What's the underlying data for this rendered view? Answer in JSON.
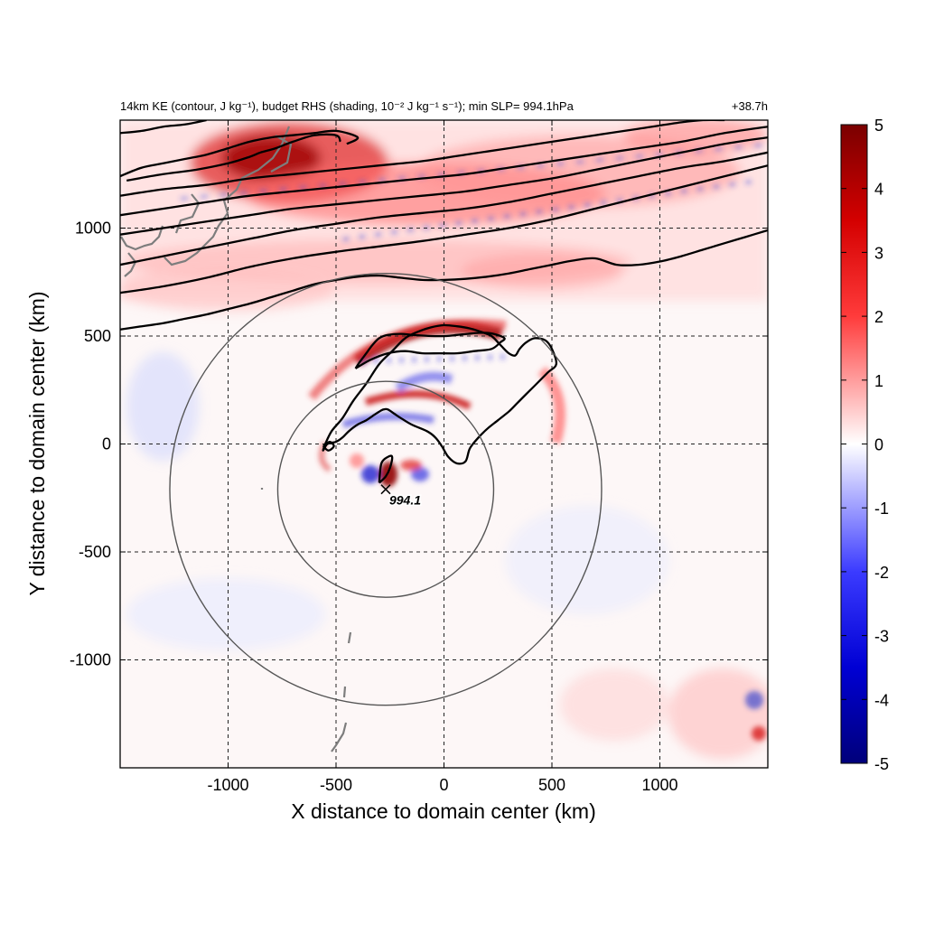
{
  "chart_data": {
    "type": "heatmap",
    "title": "14km KE (contour, J kg⁻¹), budget RHS (shading, 10⁻² J kg⁻¹ s⁻¹); min SLP= 994.1hPa",
    "time_label": "+38.7h",
    "xlabel": "X distance to domain center (km)",
    "ylabel": "Y distance to domain center (km)",
    "xlim": [
      -1500,
      1500
    ],
    "ylim": [
      -1500,
      1500
    ],
    "x_ticks": [
      -1000,
      -500,
      0,
      500,
      1000
    ],
    "y_ticks": [
      -1000,
      -500,
      0,
      500,
      1000
    ],
    "x_tick_labels": [
      "-1000",
      "-500",
      "0",
      "500",
      "1000"
    ],
    "y_tick_labels": [
      "-1000",
      "-500",
      "0",
      "500",
      "1000"
    ],
    "grid": true,
    "colorbar": {
      "min": -5,
      "max": 5,
      "ticks": [
        5,
        4,
        3,
        2,
        1,
        0,
        -1,
        -2,
        -3,
        -4,
        -5
      ],
      "tick_labels": [
        "5",
        "4",
        "3",
        "2",
        "1",
        "0",
        "-1",
        "-2",
        "-3",
        "-4",
        "-5"
      ],
      "colors": [
        "#000080",
        "#0000ff",
        "#ffffff",
        "#ff0000",
        "#800000"
      ],
      "position": "right"
    },
    "storm_center": {
      "x": -270,
      "y": -210,
      "label": "994.1"
    },
    "circles": [
      {
        "center_x": -270,
        "center_y": -210,
        "radius": 500
      },
      {
        "center_x": -270,
        "center_y": -210,
        "radius": 1000
      }
    ],
    "shading_features": [
      {
        "name": "jet-band",
        "sign": "mixed",
        "description_x": [
          -1500,
          1500
        ],
        "description_y": [
          700,
          1500
        ]
      },
      {
        "name": "outer-rainband-max",
        "sign": "positive",
        "x": 100,
        "y": 530,
        "value": 5
      },
      {
        "name": "northwest-japan-max",
        "sign": "positive",
        "x": -850,
        "y": 1290,
        "value": 4.5
      },
      {
        "name": "inner-band-max",
        "sign": "positive",
        "x": -150,
        "y": 200,
        "value": 3.5
      },
      {
        "name": "core-max",
        "sign": "positive",
        "x": -250,
        "y": -110,
        "value": 4
      },
      {
        "name": "core-min",
        "sign": "negative",
        "x": -330,
        "y": -160,
        "value": -3.5
      },
      {
        "name": "inner-min",
        "sign": "negative",
        "x": -170,
        "y": 110,
        "value": -3
      }
    ],
    "contours": [
      {
        "level": "KE-1",
        "x": [
          -1500,
          -1400,
          -1300,
          -1200,
          -1100,
          -1000,
          -900,
          -800,
          -700,
          -600,
          -500,
          -400,
          -300,
          -200,
          -100,
          0,
          100,
          200,
          300,
          400,
          500,
          600,
          700,
          800,
          900,
          1000,
          1100,
          1200,
          1300,
          1400,
          1500
        ],
        "y": [
          530,
          545,
          560,
          580,
          600,
          625,
          650,
          680,
          710,
          740,
          760,
          775,
          780,
          770,
          760,
          760,
          765,
          775,
          790,
          810,
          830,
          850,
          860,
          830,
          830,
          845,
          870,
          900,
          930,
          960,
          990
        ]
      },
      {
        "level": "KE-2",
        "x": [
          -1500,
          -1300,
          -1100,
          -900,
          -700,
          -500,
          -300,
          -100,
          100,
          300,
          500,
          700,
          900,
          1100,
          1300,
          1500
        ],
        "y": [
          700,
          730,
          770,
          820,
          860,
          890,
          915,
          940,
          970,
          1000,
          1040,
          1090,
          1140,
          1190,
          1240,
          1290
        ]
      },
      {
        "level": "KE-3",
        "x": [
          -1500,
          -1300,
          -1100,
          -900,
          -700,
          -500,
          -300,
          -100,
          100,
          300,
          500,
          700,
          900,
          1100,
          1300,
          1500
        ],
        "y": [
          830,
          870,
          910,
          950,
          990,
          1020,
          1050,
          1070,
          1090,
          1120,
          1160,
          1200,
          1240,
          1280,
          1310,
          1350
        ]
      },
      {
        "level": "KE-4",
        "x": [
          -1500,
          -1300,
          -1100,
          -900,
          -700,
          -500,
          -300,
          -100,
          100,
          300,
          500,
          700,
          900,
          1100,
          1300,
          1500
        ],
        "y": [
          970,
          1000,
          1030,
          1060,
          1090,
          1110,
          1130,
          1150,
          1170,
          1200,
          1230,
          1270,
          1310,
          1350,
          1390,
          1420
        ]
      },
      {
        "level": "KE-5",
        "x": [
          -1500,
          -1300,
          -1100,
          -900,
          -700,
          -500,
          -300,
          -100,
          100,
          300,
          500,
          700,
          900,
          1100,
          1300,
          1500
        ],
        "y": [
          1060,
          1090,
          1120,
          1150,
          1170,
          1190,
          1210,
          1230,
          1250,
          1280,
          1310,
          1340,
          1370,
          1400,
          1440,
          1470
        ]
      },
      {
        "level": "KE-6",
        "x": [
          -1500,
          -1300,
          -1100,
          -900,
          -700,
          -500,
          -300,
          -100,
          100,
          300,
          500,
          700,
          900,
          1100,
          1200,
          1300
        ],
        "y": [
          1150,
          1180,
          1200,
          1230,
          1250,
          1270,
          1290,
          1310,
          1340,
          1370,
          1400,
          1430,
          1460,
          1490,
          1500,
          1500
        ]
      },
      {
        "level": "KE-7",
        "x": [
          -1500,
          -1400,
          -1300,
          -1200,
          -1100,
          -1000,
          -900,
          -800,
          -700,
          -600,
          -500,
          -400,
          -450
        ],
        "y": [
          1240,
          1280,
          1300,
          1320,
          1340,
          1370,
          1400,
          1420,
          1430,
          1440,
          1450,
          1420,
          1390
        ]
      },
      {
        "level": "KE-8",
        "x": [
          -1500,
          -1400,
          -1300,
          -1200,
          -1100
        ],
        "y": [
          1440,
          1450,
          1470,
          1480,
          1500
        ]
      },
      {
        "level": "KE-9",
        "x": [
          -1470,
          -1300,
          -1150,
          -1000,
          -900,
          -850,
          -780,
          -700,
          -600,
          -500,
          -480
        ],
        "y": [
          1220,
          1250,
          1270,
          1300,
          1330,
          1350,
          1370,
          1400,
          1430,
          1430,
          1400
        ]
      },
      {
        "level": "ring-outer",
        "x": [
          -550,
          -520,
          -470,
          -420,
          -360,
          -300,
          -240,
          -180,
          -120,
          -60,
          0,
          60,
          120,
          170,
          220,
          260,
          300,
          330,
          350,
          380,
          420,
          470,
          500,
          520,
          480,
          420,
          380,
          340,
          300,
          250,
          200,
          160,
          120,
          100,
          60,
          20,
          -10,
          -40,
          -80,
          -150,
          -200,
          -230,
          -260,
          -280,
          -300,
          -330,
          -360,
          -400,
          -440,
          -470,
          -500,
          -540,
          -560,
          -550
        ],
        "y": [
          0,
          60,
          120,
          200,
          280,
          370,
          430,
          490,
          520,
          540,
          550,
          545,
          535,
          520,
          500,
          460,
          420,
          410,
          440,
          470,
          490,
          480,
          440,
          370,
          330,
          270,
          230,
          190,
          150,
          110,
          70,
          30,
          -20,
          -80,
          -90,
          -60,
          -10,
          30,
          60,
          90,
          120,
          140,
          160,
          160,
          150,
          130,
          110,
          90,
          60,
          30,
          10,
          0,
          -30,
          0
        ]
      },
      {
        "level": "ring-inner",
        "x": [
          -410,
          -340,
          -260,
          -180,
          -100,
          -20,
          60,
          140,
          220,
          260,
          280,
          230,
          170,
          110,
          60,
          10,
          -60,
          -140,
          -200,
          -260,
          -300,
          -330,
          -360,
          -390,
          -410
        ],
        "y": [
          350,
          390,
          420,
          430,
          420,
          420,
          420,
          430,
          440,
          470,
          490,
          510,
          515,
          510,
          505,
          500,
          500,
          505,
          510,
          505,
          490,
          460,
          420,
          380,
          350
        ]
      },
      {
        "level": "core",
        "x": [
          -300,
          -270,
          -250,
          -240,
          -260,
          -290,
          -300
        ],
        "y": [
          -180,
          -150,
          -110,
          -60,
          -60,
          -90,
          -180
        ]
      },
      {
        "level": "small-loop",
        "x": [
          -560,
          -530,
          -510,
          -535,
          -560
        ],
        "y": [
          -10,
          10,
          -10,
          -30,
          -10
        ]
      }
    ]
  }
}
